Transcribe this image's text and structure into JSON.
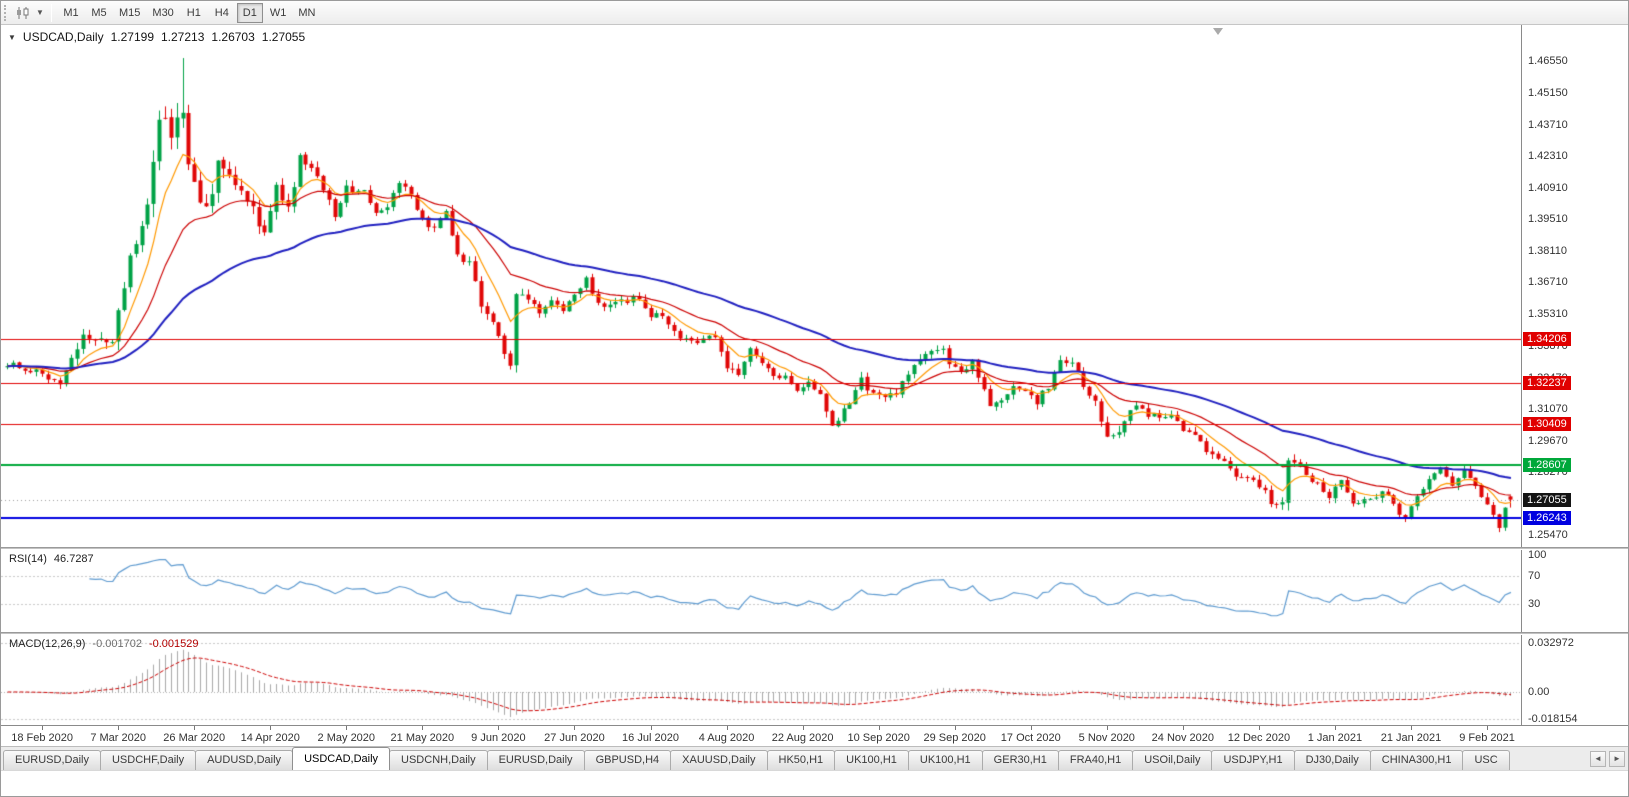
{
  "toolbar": {
    "timeframes": [
      "M1",
      "M5",
      "M15",
      "M30",
      "H1",
      "H4",
      "D1",
      "W1",
      "MN"
    ],
    "active_timeframe": "D1"
  },
  "chart": {
    "title": {
      "symbol": "USDCAD,Daily",
      "open": "1.27199",
      "high": "1.27213",
      "low": "1.26703",
      "close": "1.27055"
    },
    "y_ticks": [
      {
        "label": "1.46550",
        "value": 1.4655
      },
      {
        "label": "1.45150",
        "value": 1.4515
      },
      {
        "label": "1.43710",
        "value": 1.4371
      },
      {
        "label": "1.42310",
        "value": 1.4231
      },
      {
        "label": "1.40910",
        "value": 1.4091
      },
      {
        "label": "1.39510",
        "value": 1.3951
      },
      {
        "label": "1.38110",
        "value": 1.3811
      },
      {
        "label": "1.36710",
        "value": 1.3671
      },
      {
        "label": "1.35310",
        "value": 1.3531
      },
      {
        "label": "1.33870",
        "value": 1.3387
      },
      {
        "label": "1.32470",
        "value": 1.3247
      },
      {
        "label": "1.31070",
        "value": 1.3107
      },
      {
        "label": "1.29670",
        "value": 1.2967
      },
      {
        "label": "1.28270",
        "value": 1.2827
      },
      {
        "label": "1.26870",
        "value": 1.2687
      },
      {
        "label": "1.25470",
        "value": 1.2547
      }
    ],
    "levels": [
      {
        "label": "1.34206",
        "price": 1.34206,
        "color": "#e00000",
        "width": 1
      },
      {
        "label": "1.32237",
        "price": 1.32237,
        "color": "#e00000",
        "width": 1
      },
      {
        "label": "1.30409",
        "price": 1.30409,
        "color": "#e00000",
        "width": 1
      },
      {
        "label": "1.28607",
        "price": 1.28607,
        "color": "#00a83a",
        "width": 2
      },
      {
        "label": "1.26243",
        "price": 1.26243,
        "color": "#0000e0",
        "width": 2
      }
    ],
    "current_price": {
      "label": "1.27055",
      "value": 1.27055,
      "badge_color": "#141414"
    },
    "x_dates": [
      "18 Feb 2020",
      "7 Mar 2020",
      "26 Mar 2020",
      "14 Apr 2020",
      "2 May 2020",
      "21 May 2020",
      "9 Jun 2020",
      "27 Jun 2020",
      "16 Jul 2020",
      "4 Aug 2020",
      "22 Aug 2020",
      "10 Sep 2020",
      "29 Sep 2020",
      "17 Oct 2020",
      "5 Nov 2020",
      "24 Nov 2020",
      "12 Dec 2020",
      "1 Jan 2021",
      "21 Jan 2021",
      "9 Feb 2021"
    ],
    "candles": 258,
    "spike_high": 1.4668,
    "last_candle": {
      "o": 1.27199,
      "h": 1.27213,
      "l": 1.26703,
      "c": 1.27055
    },
    "anchors": [
      [
        0,
        1.331,
        4
      ],
      [
        3,
        1.328,
        4
      ],
      [
        6,
        1.3263,
        4
      ],
      [
        9,
        1.3215,
        4
      ],
      [
        13,
        1.3429,
        6
      ],
      [
        16,
        1.3405,
        5
      ],
      [
        18,
        1.3422,
        6
      ],
      [
        20,
        1.366,
        10
      ],
      [
        22,
        1.386,
        10
      ],
      [
        24,
        1.3998,
        11
      ],
      [
        26,
        1.435,
        15
      ],
      [
        27,
        1.443,
        16
      ],
      [
        28,
        1.433,
        13
      ],
      [
        30,
        1.447,
        12
      ],
      [
        31,
        1.418,
        11
      ],
      [
        33,
        1.399,
        9
      ],
      [
        35,
        1.4062,
        8
      ],
      [
        36,
        1.421,
        8
      ],
      [
        38,
        1.4136,
        7
      ],
      [
        40,
        1.408,
        6
      ],
      [
        42,
        1.401,
        6
      ],
      [
        44,
        1.387,
        6
      ],
      [
        46,
        1.409,
        6
      ],
      [
        48,
        1.4,
        5
      ],
      [
        50,
        1.422,
        6
      ],
      [
        52,
        1.416,
        5
      ],
      [
        54,
        1.409,
        5
      ],
      [
        56,
        1.395,
        5
      ],
      [
        58,
        1.409,
        5
      ],
      [
        61,
        1.407,
        4
      ],
      [
        63,
        1.398,
        4
      ],
      [
        65,
        1.402,
        4
      ],
      [
        67,
        1.4105,
        4
      ],
      [
        69,
        1.406,
        4
      ],
      [
        71,
        1.3945,
        4
      ],
      [
        73,
        1.392,
        4
      ],
      [
        75,
        1.3985,
        4
      ],
      [
        77,
        1.378,
        5
      ],
      [
        79,
        1.376,
        4
      ],
      [
        81,
        1.356,
        5
      ],
      [
        83,
        1.349,
        4
      ],
      [
        85,
        1.337,
        5
      ],
      [
        86,
        1.3316,
        4
      ],
      [
        87,
        1.363,
        6
      ],
      [
        89,
        1.359,
        4
      ],
      [
        91,
        1.3535,
        4
      ],
      [
        93,
        1.3605,
        4
      ],
      [
        95,
        1.355,
        4
      ],
      [
        97,
        1.363,
        4
      ],
      [
        99,
        1.3688,
        4
      ],
      [
        101,
        1.3576,
        4
      ],
      [
        104,
        1.3575,
        4
      ],
      [
        106,
        1.359,
        4
      ],
      [
        108,
        1.3612,
        4
      ],
      [
        110,
        1.351,
        4
      ],
      [
        112,
        1.3535,
        4
      ],
      [
        114,
        1.346,
        4
      ],
      [
        116,
        1.3408,
        4
      ],
      [
        118,
        1.3415,
        4
      ],
      [
        121,
        1.344,
        5
      ],
      [
        123,
        1.3305,
        5
      ],
      [
        125,
        1.326,
        4
      ],
      [
        127,
        1.338,
        4
      ],
      [
        129,
        1.33,
        4
      ],
      [
        131,
        1.325,
        4
      ],
      [
        133,
        1.3265,
        4
      ],
      [
        135,
        1.318,
        4
      ],
      [
        137,
        1.322,
        4
      ],
      [
        139,
        1.317,
        4
      ],
      [
        141,
        1.304,
        5
      ],
      [
        143,
        1.31,
        4
      ],
      [
        146,
        1.324,
        5
      ],
      [
        148,
        1.3165,
        4
      ],
      [
        150,
        1.3165,
        4
      ],
      [
        152,
        1.318,
        4
      ],
      [
        155,
        1.331,
        4
      ],
      [
        158,
        1.338,
        4
      ],
      [
        160,
        1.3385,
        4
      ],
      [
        161,
        1.332,
        4
      ],
      [
        163,
        1.328,
        4
      ],
      [
        165,
        1.3315,
        4
      ],
      [
        166,
        1.326,
        4
      ],
      [
        168,
        1.312,
        5
      ],
      [
        170,
        1.3135,
        4
      ],
      [
        172,
        1.3215,
        4
      ],
      [
        174,
        1.319,
        4
      ],
      [
        176,
        1.3145,
        4
      ],
      [
        178,
        1.321,
        4
      ],
      [
        180,
        1.332,
        4
      ],
      [
        182,
        1.3325,
        4
      ],
      [
        184,
        1.322,
        4
      ],
      [
        186,
        1.314,
        4
      ],
      [
        188,
        1.3,
        5
      ],
      [
        189,
        1.2975,
        5
      ],
      [
        191,
        1.306,
        5
      ],
      [
        193,
        1.313,
        4
      ],
      [
        195,
        1.308,
        4
      ],
      [
        197,
        1.307,
        4
      ],
      [
        199,
        1.309,
        4
      ],
      [
        201,
        1.3,
        4
      ],
      [
        203,
        1.299,
        4
      ],
      [
        205,
        1.293,
        4
      ],
      [
        207,
        1.289,
        4
      ],
      [
        208,
        1.2865,
        4
      ],
      [
        210,
        1.28,
        4
      ],
      [
        212,
        1.281,
        4
      ],
      [
        214,
        1.277,
        4
      ],
      [
        216,
        1.27,
        4
      ],
      [
        218,
        1.269,
        4
      ],
      [
        219,
        1.287,
        6
      ],
      [
        221,
        1.285,
        4
      ],
      [
        223,
        1.279,
        4
      ],
      [
        226,
        1.2725,
        4
      ],
      [
        228,
        1.278,
        4
      ],
      [
        230,
        1.268,
        4
      ],
      [
        232,
        1.27,
        4
      ],
      [
        234,
        1.2725,
        4
      ],
      [
        236,
        1.273,
        4
      ],
      [
        238,
        1.264,
        4
      ],
      [
        239,
        1.263,
        5
      ],
      [
        241,
        1.2735,
        4
      ],
      [
        243,
        1.28,
        4
      ],
      [
        245,
        1.2845,
        4
      ],
      [
        247,
        1.278,
        4
      ],
      [
        249,
        1.284,
        4
      ],
      [
        251,
        1.2755,
        4
      ],
      [
        253,
        1.269,
        4
      ],
      [
        255,
        1.259,
        4
      ],
      [
        256,
        1.268,
        3
      ],
      [
        257,
        1.27055,
        3
      ]
    ],
    "colors": {
      "up": "#00a246",
      "down": "#e00707",
      "ma_fast": "#ff9900",
      "ma_mid": "#cc0000",
      "ma_slow": "#2020c0"
    }
  },
  "rsi": {
    "label": "RSI(14)",
    "value": "46.7287",
    "period": 14,
    "color": "#5f9bd0",
    "scale_labels": [
      {
        "label": "100",
        "value": 100
      },
      {
        "label": "70",
        "value": 70
      },
      {
        "label": "30",
        "value": 30
      }
    ],
    "dashed_levels": [
      70,
      30
    ]
  },
  "macd": {
    "label": "MACD(12,26,9)",
    "main_value": "-0.001702",
    "signal_value": "-0.001529",
    "fast": 12,
    "slow": 26,
    "signal": 9,
    "hist_color": "#a8a8a8",
    "signal_color": "#cc0000",
    "scale_labels": [
      {
        "label": "0.032972",
        "value": 0.032972
      },
      {
        "label": "0.00",
        "value": 0
      },
      {
        "label": "-0.018154",
        "value": -0.018154
      }
    ]
  },
  "tabbar": {
    "tabs": [
      {
        "label": "EURUSD,Daily",
        "active": false
      },
      {
        "label": "USDCHF,Daily",
        "active": false
      },
      {
        "label": "AUDUSD,Daily",
        "active": false
      },
      {
        "label": "USDCAD,Daily",
        "active": true
      },
      {
        "label": "USDCNH,Daily",
        "active": false
      },
      {
        "label": "EURUSD,Daily",
        "active": false
      },
      {
        "label": "GBPUSD,H4",
        "active": false
      },
      {
        "label": "XAUUSD,Daily",
        "active": false
      },
      {
        "label": "HK50,H1",
        "active": false
      },
      {
        "label": "UK100,H1",
        "active": false
      },
      {
        "label": "UK100,H1",
        "active": false
      },
      {
        "label": "GER30,H1",
        "active": false
      },
      {
        "label": "FRA40,H1",
        "active": false
      },
      {
        "label": "USOil,Daily",
        "active": false
      },
      {
        "label": "USDJPY,H1",
        "active": false
      },
      {
        "label": "DJ30,Daily",
        "active": false
      },
      {
        "label": "CHINA300,H1",
        "active": false
      },
      {
        "label": "USC",
        "active": false
      }
    ],
    "scroll_left": "◄",
    "scroll_right": "►"
  }
}
